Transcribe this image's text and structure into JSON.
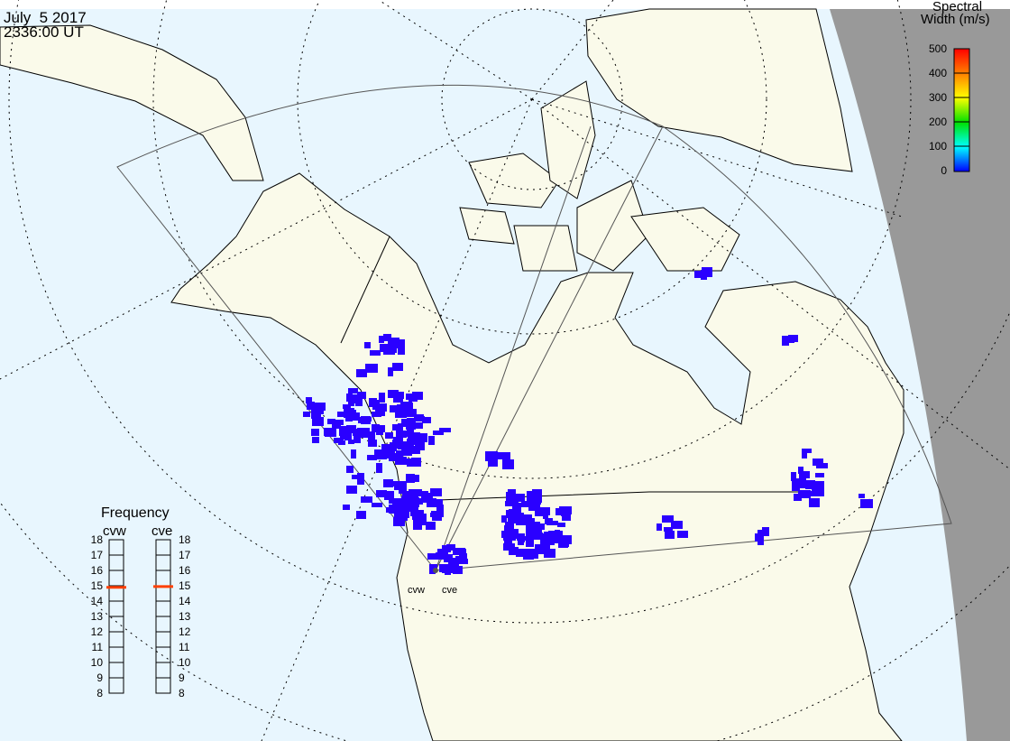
{
  "header": {
    "date": "July  5 2017",
    "time": "2336:00 UT"
  },
  "colorbar": {
    "title_line1": "Spectral",
    "title_line2": "Width (m/s)",
    "ticks": [
      "500",
      "400",
      "300",
      "200",
      "100",
      "0"
    ],
    "range": [
      0,
      500
    ],
    "colors": [
      "#ff0000",
      "#ff7f00",
      "#ffff00",
      "#00e000",
      "#00ffff",
      "#0000ff"
    ]
  },
  "frequency": {
    "title": "Frequency",
    "radars": [
      {
        "name": "cvw",
        "value_mhz": 14.9
      },
      {
        "name": "cve",
        "value_mhz": 14.95
      }
    ],
    "ticks": [
      "18",
      "17",
      "16",
      "15",
      "14",
      "13",
      "12",
      "11",
      "10",
      "9",
      "8"
    ],
    "range": [
      8,
      18
    ],
    "marker_color": "#ff4000"
  },
  "map": {
    "radar_labels": [
      "cvw",
      "cve"
    ],
    "ocean_color": "#e8f6fe",
    "land_color": "#fafaea",
    "night_color": "#999999",
    "scatter_color": "#2a00ff"
  }
}
